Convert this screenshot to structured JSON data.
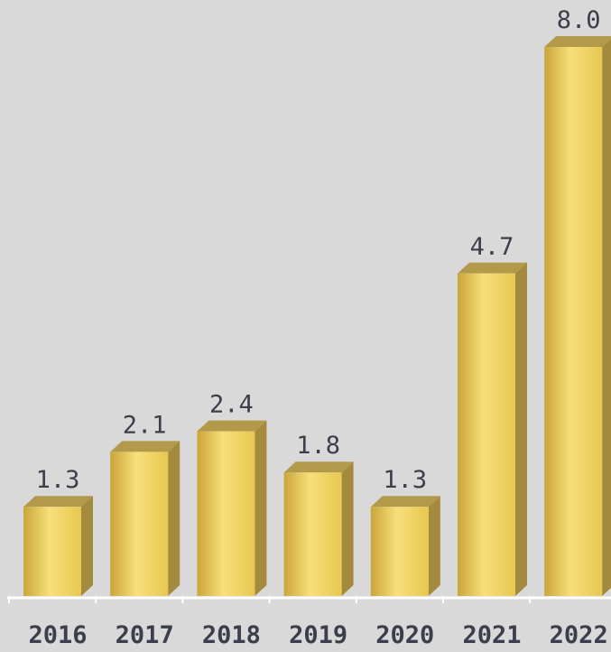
{
  "chart_data": {
    "type": "bar",
    "categories": [
      "2016",
      "2017",
      "2018",
      "2019",
      "2020",
      "2021",
      "2022"
    ],
    "values": [
      1.3,
      2.1,
      2.4,
      1.8,
      1.3,
      4.7,
      8.0
    ],
    "value_labels": [
      "1.3",
      "2.1",
      "2.4",
      "1.8",
      "1.3",
      "4.7",
      "8.0"
    ],
    "title": "",
    "xlabel": "",
    "ylabel": "",
    "ylim": [
      0,
      8.0
    ],
    "grid": false,
    "legend": "none",
    "colors": {
      "background": "#d9d9d9",
      "bar_front_light": "#f7df7a",
      "bar_front_mid": "#e8c752",
      "bar_front_dark": "#c9a63a",
      "bar_side": "#a38a3c",
      "bar_top": "#b39a4a",
      "baseline": "#ffffff",
      "text": "#3a3f4a"
    }
  }
}
